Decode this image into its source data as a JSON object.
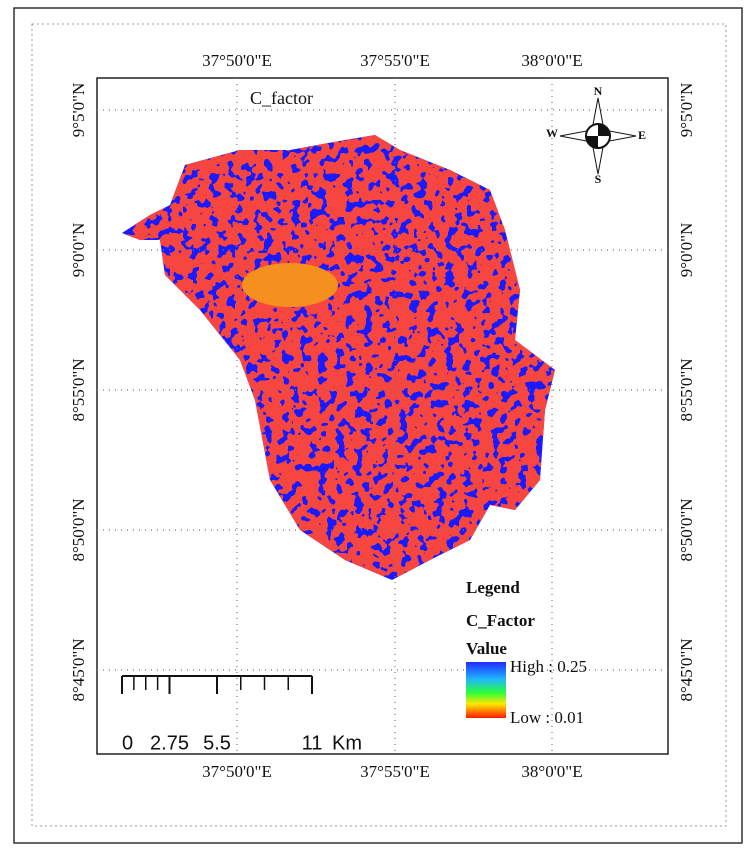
{
  "map": {
    "title": "C_factor",
    "top_labels": [
      "37°50'0\"E",
      "37°55'0\"E",
      "38°0'0\"E"
    ],
    "bottom_labels": [
      "37°50'0\"E",
      "37°55'0\"E",
      "38°0'0\"E"
    ],
    "left_labels": [
      "9°5'0\"N",
      "9°0'0\"N",
      "8°55'0\"N",
      "8°50'0\"N",
      "8°45'0\"N"
    ],
    "right_labels": [
      "9°5'0\"N",
      "9°0'0\"N",
      "8°55'0\"N",
      "8°50'0\"N",
      "8°45'0\"N"
    ]
  },
  "compass": {
    "north": "N",
    "south": "S",
    "east": "E",
    "west": "W"
  },
  "legend": {
    "title": "Legend",
    "layer": "C_Factor",
    "field": "Value",
    "high": "High : 0.25",
    "low": "Low : 0.01"
  },
  "scale_bar": {
    "ticks": [
      0,
      2.75,
      5.5,
      11
    ],
    "unit": "Km"
  }
}
